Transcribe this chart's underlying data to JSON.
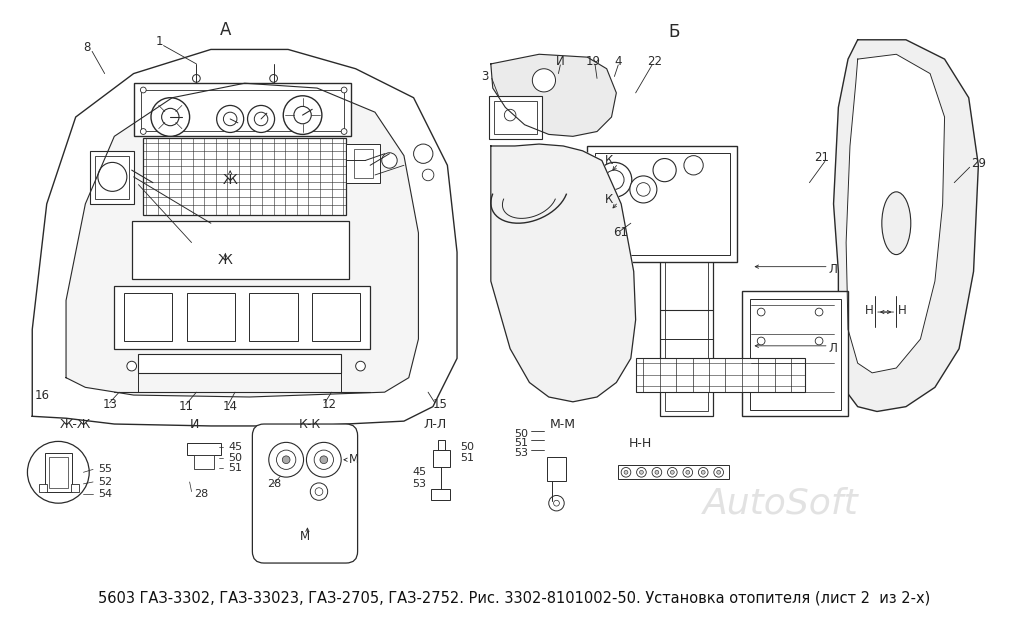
{
  "title": "5603 ГАЗ-3302, ГАЗ-33023, ГАЗ-2705, ГАЗ-2752. Рис. 3302-8101002-50. Установка отопителя (лист 2  из 2-х)",
  "label_A": "А",
  "label_B": "Б",
  "watermark": "AutoSoft",
  "bg_color": "#ffffff",
  "line_color": "#2a2a2a",
  "watermark_color": "#d0d0d0",
  "title_fontsize": 10.5,
  "annot_fs": 8.5
}
